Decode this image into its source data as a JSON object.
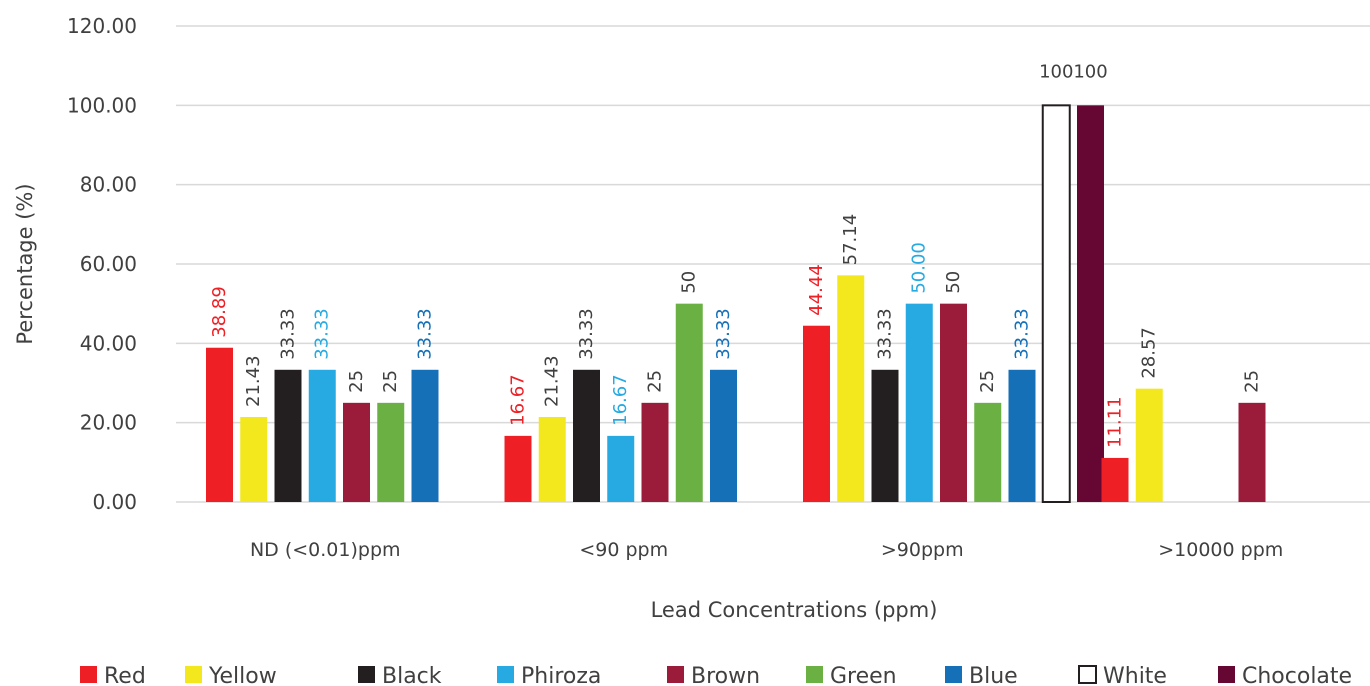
{
  "chart_data": {
    "type": "bar",
    "title": "",
    "xlabel": "Lead Concentrations (ppm)",
    "ylabel": "Percentage (%)",
    "ylim": [
      0,
      120
    ],
    "yticks": [
      "0.00",
      "20.00",
      "40.00",
      "60.00",
      "80.00",
      "100.00",
      "120.00"
    ],
    "grid": true,
    "legend_position": "bottom",
    "categories": [
      "ND (<0.01)ppm",
      "<90 ppm",
      ">90ppm",
      ">10000 ppm"
    ],
    "series": [
      {
        "name": "Red",
        "color": "#ee2026",
        "label_color": "#ee2026",
        "values": [
          38.89,
          16.67,
          44.44,
          11.11
        ],
        "labels": [
          "38.89",
          "16.67",
          "44.44",
          "11.11"
        ]
      },
      {
        "name": "Yellow",
        "color": "#f2e81d",
        "label_color": "#404040",
        "values": [
          21.43,
          21.43,
          57.14,
          28.57
        ],
        "labels": [
          "21.43",
          "21.43",
          "57.14",
          "28.57"
        ]
      },
      {
        "name": "Black",
        "color": "#231f20",
        "label_color": "#404040",
        "values": [
          33.33,
          33.33,
          33.33,
          null
        ],
        "labels": [
          "33.33",
          "33.33",
          "33.33",
          ""
        ]
      },
      {
        "name": "Phiroza",
        "color": "#27aae1",
        "label_color": "#27aae1",
        "values": [
          33.33,
          16.67,
          50.0,
          null
        ],
        "labels": [
          "33.33",
          "16.67",
          "50.00",
          ""
        ]
      },
      {
        "name": "Brown",
        "color": "#9b1b3b",
        "label_color": "#404040",
        "values": [
          25,
          25,
          50,
          25
        ],
        "labels": [
          "25",
          "25",
          "50",
          "25"
        ]
      },
      {
        "name": "Green",
        "color": "#6ab043",
        "label_color": "#404040",
        "values": [
          25,
          50,
          25,
          null
        ],
        "labels": [
          "25",
          "50",
          "25",
          ""
        ]
      },
      {
        "name": "Blue",
        "color": "#1570b8",
        "label_color": "#1570b8",
        "values": [
          33.33,
          33.33,
          33.33,
          null
        ],
        "labels": [
          "33.33",
          "33.33",
          "33.33",
          ""
        ]
      },
      {
        "name": "White",
        "color": "#ffffff",
        "stroke": "#231f20",
        "label_color": "#404040",
        "values": [
          null,
          null,
          100,
          null
        ],
        "labels": [
          "",
          "",
          "100",
          ""
        ]
      },
      {
        "name": "Chocolate",
        "color": "#650633",
        "label_color": "#404040",
        "values": [
          null,
          null,
          100,
          null
        ],
        "labels": [
          "",
          "",
          "100",
          ""
        ]
      }
    ]
  }
}
